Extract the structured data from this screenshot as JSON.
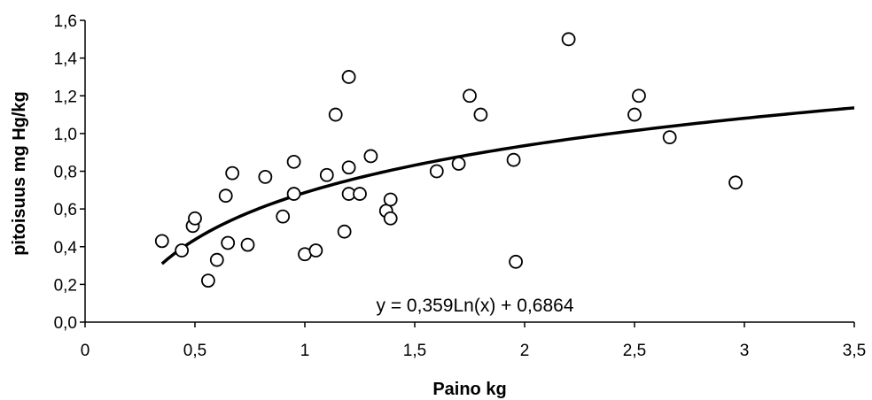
{
  "chart_data": {
    "type": "scatter",
    "title": "",
    "xlabel": "Paino kg",
    "ylabel": "pitoisuus mg Hg/kg",
    "xlim": [
      0,
      3.5
    ],
    "ylim": [
      0,
      1.6
    ],
    "x_ticks": [
      "0",
      "0,5",
      "1",
      "1,5",
      "2",
      "2,5",
      "3",
      "3,5"
    ],
    "x_tick_values": [
      0,
      0.5,
      1,
      1.5,
      2,
      2.5,
      3,
      3.5
    ],
    "y_ticks": [
      "0,0",
      "0,2",
      "0,4",
      "0,6",
      "0,8",
      "1,0",
      "1,2",
      "1,4",
      "1,6"
    ],
    "y_tick_values": [
      0,
      0.2,
      0.4,
      0.6,
      0.8,
      1.0,
      1.2,
      1.4,
      1.6
    ],
    "grid": false,
    "legend": "none",
    "series": [
      {
        "points": [
          {
            "x": 0.35,
            "y": 0.43
          },
          {
            "x": 0.44,
            "y": 0.38
          },
          {
            "x": 0.49,
            "y": 0.51
          },
          {
            "x": 0.5,
            "y": 0.55
          },
          {
            "x": 0.56,
            "y": 0.22
          },
          {
            "x": 0.6,
            "y": 0.33
          },
          {
            "x": 0.64,
            "y": 0.67
          },
          {
            "x": 0.65,
            "y": 0.42
          },
          {
            "x": 0.67,
            "y": 0.79
          },
          {
            "x": 0.74,
            "y": 0.41
          },
          {
            "x": 0.82,
            "y": 0.77
          },
          {
            "x": 0.9,
            "y": 0.56
          },
          {
            "x": 0.95,
            "y": 0.85
          },
          {
            "x": 0.95,
            "y": 0.68
          },
          {
            "x": 1.0,
            "y": 0.36
          },
          {
            "x": 1.05,
            "y": 0.38
          },
          {
            "x": 1.1,
            "y": 0.78
          },
          {
            "x": 1.14,
            "y": 1.1
          },
          {
            "x": 1.18,
            "y": 0.48
          },
          {
            "x": 1.2,
            "y": 1.3
          },
          {
            "x": 1.2,
            "y": 0.82
          },
          {
            "x": 1.2,
            "y": 0.68
          },
          {
            "x": 1.25,
            "y": 0.68
          },
          {
            "x": 1.3,
            "y": 0.88
          },
          {
            "x": 1.37,
            "y": 0.59
          },
          {
            "x": 1.39,
            "y": 0.65
          },
          {
            "x": 1.39,
            "y": 0.55
          },
          {
            "x": 1.6,
            "y": 0.8
          },
          {
            "x": 1.7,
            "y": 0.84
          },
          {
            "x": 1.75,
            "y": 1.2
          },
          {
            "x": 1.8,
            "y": 1.1
          },
          {
            "x": 1.95,
            "y": 0.86
          },
          {
            "x": 1.96,
            "y": 0.32
          },
          {
            "x": 2.2,
            "y": 1.5
          },
          {
            "x": 2.5,
            "y": 1.1
          },
          {
            "x": 2.52,
            "y": 1.2
          },
          {
            "x": 2.66,
            "y": 0.98
          },
          {
            "x": 2.96,
            "y": 0.74
          }
        ]
      }
    ],
    "trendline": {
      "type": "logarithmic",
      "a": 0.359,
      "b": 0.6864,
      "x_range": [
        0.35,
        3.5
      ],
      "equation_label": "y = 0,359Ln(x) + 0,6864"
    }
  },
  "colors": {
    "axis": "#000000",
    "marker_stroke": "#000000",
    "marker_fill": "#ffffff",
    "trendline": "#000000",
    "background": "#ffffff"
  }
}
